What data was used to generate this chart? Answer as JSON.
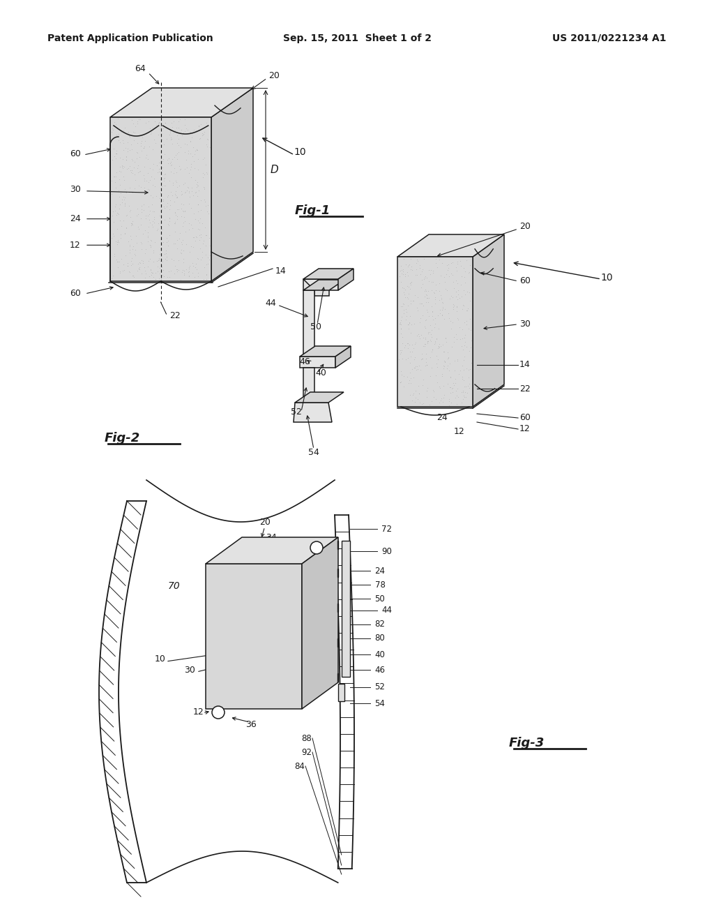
{
  "header_left": "Patent Application Publication",
  "header_mid": "Sep. 15, 2011  Sheet 1 of 2",
  "header_right": "US 2011/0221234 A1",
  "bg_color": "#ffffff",
  "lc": "#1a1a1a",
  "fig1_label": "Fig-1",
  "fig2_label": "Fig-2",
  "fig3_label": "Fig-3"
}
